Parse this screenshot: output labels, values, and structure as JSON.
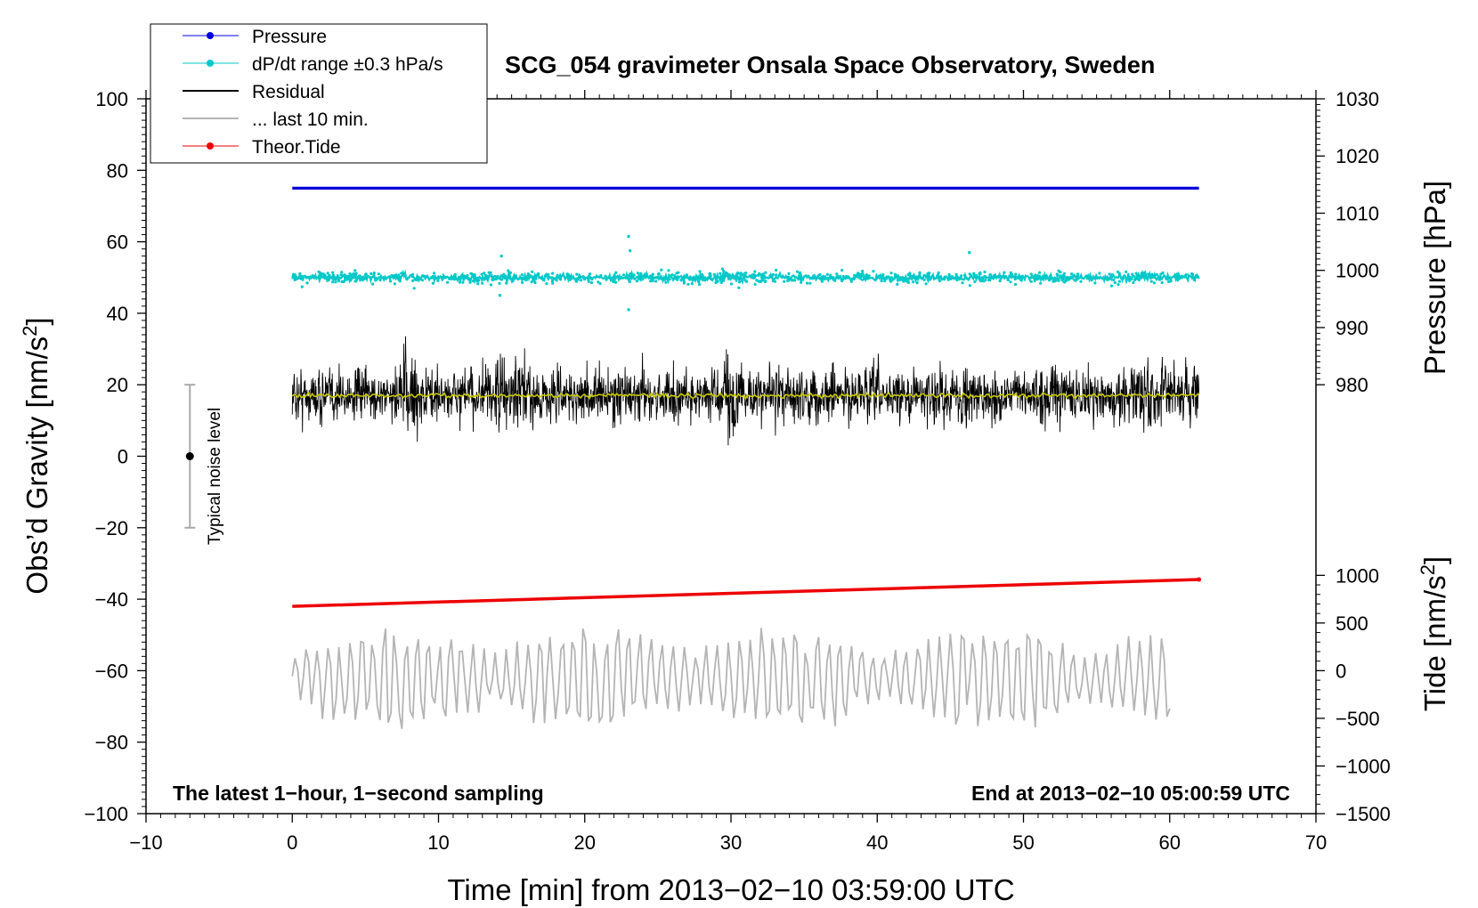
{
  "chart_data": {
    "type": "line",
    "title": "SCG_054 gravimeter Onsala Space Observatory, Sweden",
    "xlabel": "Time [min] from 2013−02−10 03:59:00 UTC",
    "ylabel_main": "Obs’d Gravity [nm/s",
    "ylabel_main_sup": "2",
    "ylabel_main_end": "]",
    "ylabel_pressure": "Pressure [hPa]",
    "ylabel_tide": "Tide [nm/s",
    "ylabel_tide_sup": "2",
    "ylabel_tide_end": "]",
    "xlim": [
      -10,
      70
    ],
    "ylim": [
      -100,
      100
    ],
    "x_ticks": [
      -10,
      0,
      10,
      20,
      30,
      40,
      50,
      60,
      70
    ],
    "x_tick_labels": [
      "−10",
      "0",
      "10",
      "20",
      "30",
      "40",
      "50",
      "60",
      "70"
    ],
    "y_ticks": [
      -100,
      -80,
      -60,
      -40,
      -20,
      0,
      20,
      40,
      60,
      80,
      100
    ],
    "y_tick_labels": [
      "−100",
      "−80",
      "−60",
      "−40",
      "−20",
      "0",
      "20",
      "40",
      "60",
      "80",
      "100"
    ],
    "pressure_axis": {
      "range": [
        980,
        1030
      ],
      "ticks": [
        980,
        990,
        1000,
        1010,
        1020,
        1030
      ],
      "tick_labels": [
        "980",
        "990",
        "1000",
        "1010",
        "1020",
        "1030"
      ]
    },
    "tide_axis": {
      "range": [
        -1500,
        1000
      ],
      "ticks": [
        -1500,
        -1000,
        -500,
        0,
        500,
        1000
      ],
      "tick_labels": [
        "−1500",
        "−1000",
        "−500",
        "0",
        "500",
        "1000"
      ]
    },
    "series": [
      {
        "name": "Pressure",
        "color": "#0000dd",
        "x": [
          0,
          62
        ],
        "values_gravity_axis": [
          75,
          75
        ],
        "pressure_hPa": 1014.6
      },
      {
        "name": "dP/dt range ±0.3 hPa/s",
        "color": "#00c8c8",
        "center_gravity_axis": 50,
        "x_range": [
          0,
          62
        ]
      },
      {
        "name": "Residual",
        "color": "#000000",
        "center_gravity_axis": 17,
        "x_range": [
          0,
          62
        ]
      },
      {
        "name": "... last 10 min.",
        "color": "#b4b4b4",
        "center_gravity_axis": -62,
        "x_range": [
          0,
          60
        ]
      },
      {
        "name": "Theor.Tide",
        "color": "#ee0000",
        "x": [
          0,
          62
        ],
        "values_gravity_axis": [
          -42,
          -34.5
        ]
      }
    ],
    "running_mean_color": "#c8c800",
    "noise_bar": {
      "x": -7,
      "center": 0,
      "range": [
        -20,
        20
      ],
      "label": "Typical noise level"
    },
    "annotations": {
      "left": "The latest 1−hour, 1−second sampling",
      "right": "End at 2013−02−10 05:00:59 UTC"
    },
    "legend_position": "top-left"
  }
}
